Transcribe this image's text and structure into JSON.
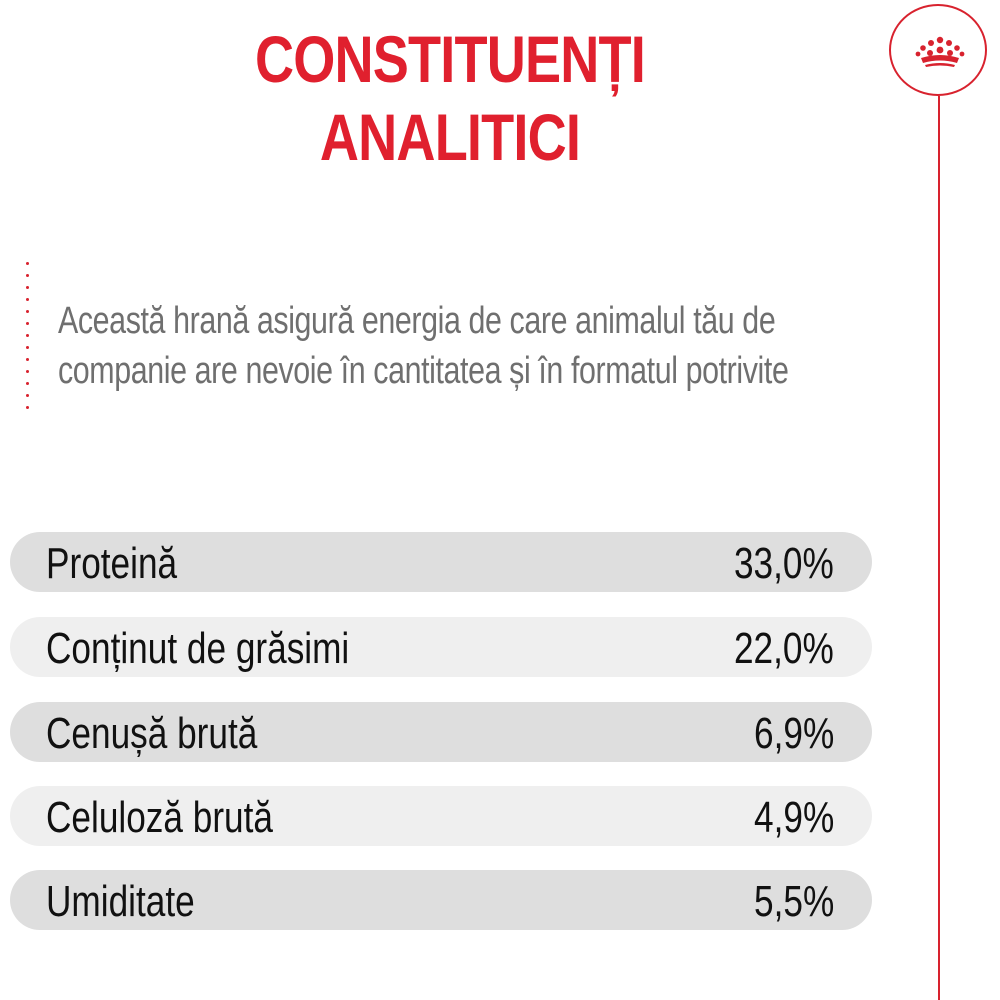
{
  "header": {
    "title_line1": "CONSTITUENȚI",
    "title_line2": "ANALITICI",
    "accent_color": "#e0202e",
    "logo_icon": "crown-icon"
  },
  "description": {
    "line1": "Această hrană asigură energia de care animalul tău de",
    "line2": "companie are nevoie în cantitatea și în formatul potrivite"
  },
  "nutrients": [
    {
      "label": "Proteină",
      "value": "33,0%"
    },
    {
      "label": "Conținut de grăsimi",
      "value": "22,0%"
    },
    {
      "label": "Cenușă brută",
      "value": "6,9%"
    },
    {
      "label": "Celuloză brută",
      "value": "4,9%"
    },
    {
      "label": "Umiditate",
      "value": "5,5%"
    }
  ]
}
